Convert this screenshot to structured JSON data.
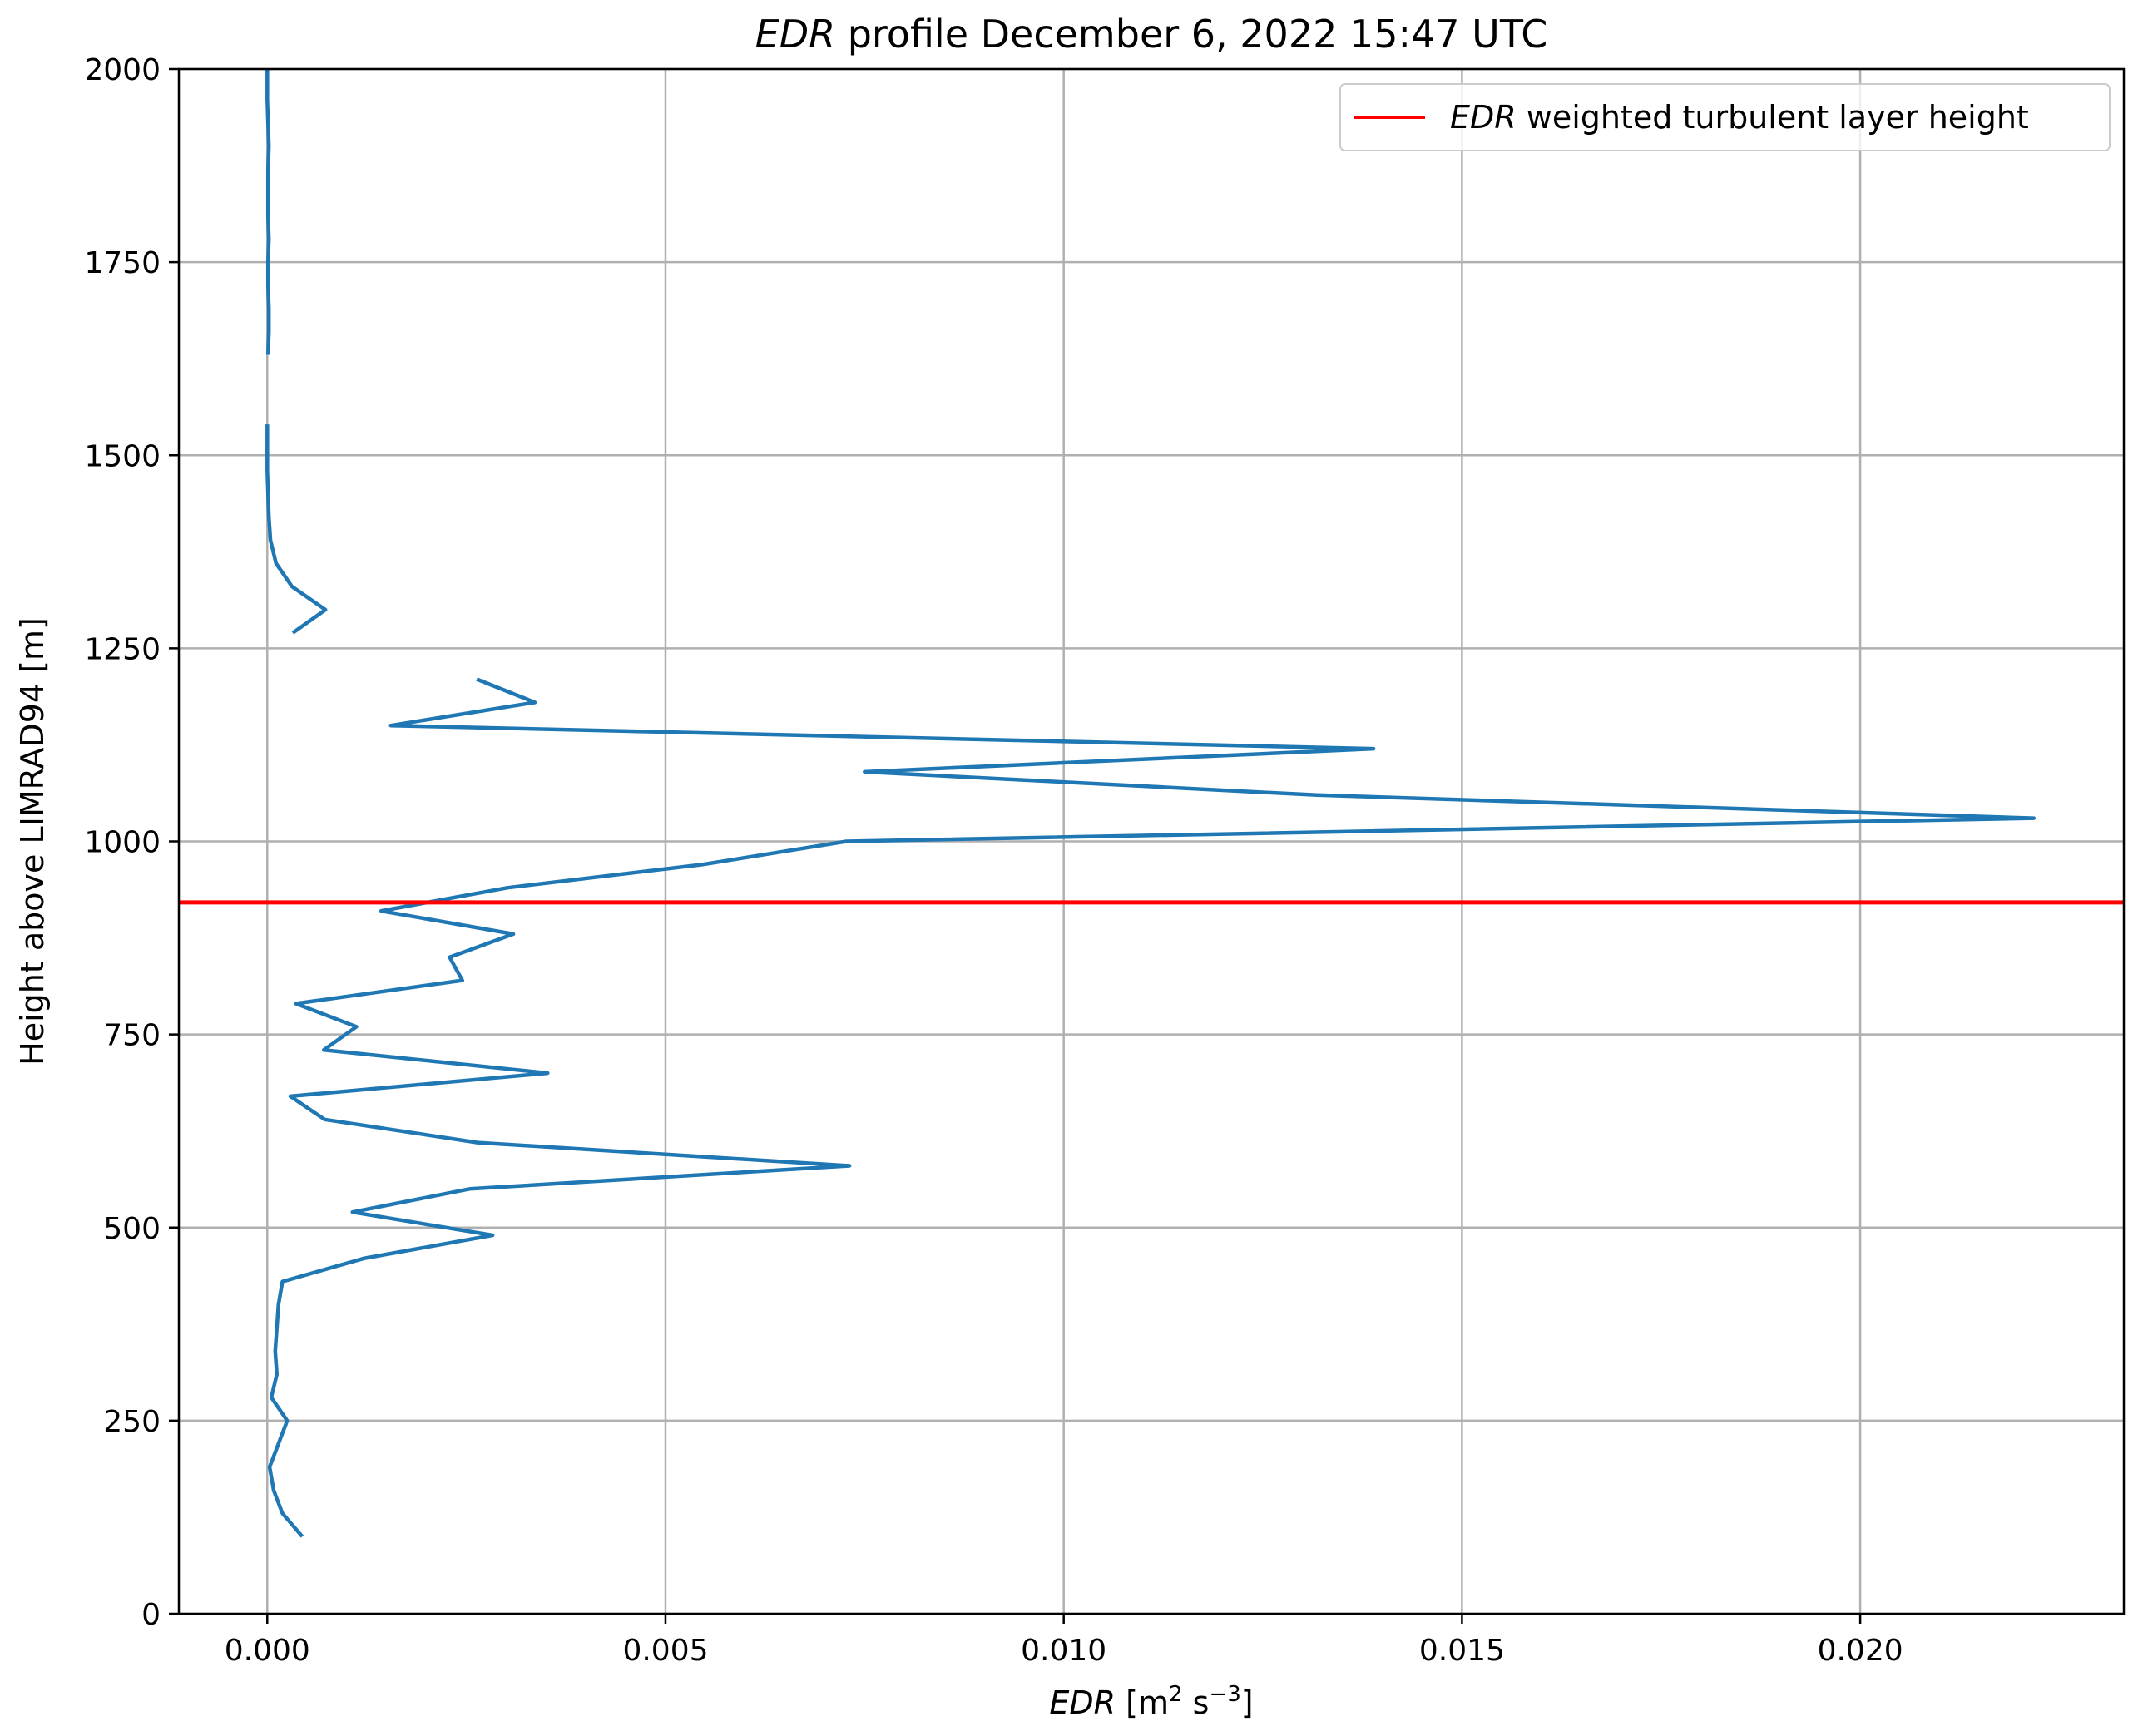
{
  "chart_data": {
    "type": "line",
    "title_italic": "EDR",
    "title_rest": " profile December 6, 2022 15:47 UTC",
    "xlabel_italic": "EDR",
    "xlabel_unit_open": " [m",
    "xlabel_exp1": "2",
    "xlabel_mid": " s",
    "xlabel_exp2": "−3",
    "xlabel_close": "]",
    "ylabel": "Height above LIMRAD94 [m]",
    "xlim": [
      -0.00111,
      0.02331
    ],
    "ylim": [
      0,
      2000
    ],
    "xticks": [
      0.0,
      0.005,
      0.01,
      0.015,
      0.02
    ],
    "xtick_labels": [
      "0.000",
      "0.005",
      "0.010",
      "0.015",
      "0.020"
    ],
    "yticks": [
      0,
      250,
      500,
      750,
      1000,
      1250,
      1500,
      1750,
      2000
    ],
    "ytick_labels": [
      "0",
      "250",
      "500",
      "750",
      "1000",
      "1250",
      "1500",
      "1750",
      "2000"
    ],
    "grid": true,
    "legend_position": "top-right",
    "colors": {
      "series": "#1f77b4",
      "layer_height": "#ff0000",
      "grid": "#b0b0b0"
    },
    "series": [
      {
        "name": "",
        "segments": [
          [
            [
              0.00044,
              100
            ],
            [
              0.00019,
              130
            ],
            [
              8e-05,
              160
            ],
            [
              3e-05,
              190
            ],
            [
              0.00014,
              220
            ],
            [
              0.00025,
              250
            ],
            [
              5e-05,
              280
            ],
            [
              0.00012,
              310
            ],
            [
              0.0001,
              340
            ],
            [
              0.00012,
              370
            ],
            [
              0.00014,
              400
            ],
            [
              0.00019,
              430
            ],
            [
              0.00121,
              460
            ],
            [
              0.00283,
              490
            ],
            [
              0.00107,
              520
            ],
            [
              0.00254,
              550
            ],
            [
              0.00731,
              580
            ],
            [
              0.00264,
              610
            ],
            [
              0.00072,
              640
            ],
            [
              0.00029,
              670
            ],
            [
              0.00352,
              700
            ],
            [
              0.00071,
              730
            ],
            [
              0.00112,
              760
            ],
            [
              0.00036,
              790
            ],
            [
              0.00245,
              820
            ],
            [
              0.00229,
              850
            ],
            [
              0.00309,
              880
            ],
            [
              0.00143,
              910
            ],
            [
              0.00302,
              940
            ],
            [
              0.00546,
              970
            ],
            [
              0.00727,
              1000
            ],
            [
              0.02218,
              1030
            ],
            [
              0.01318,
              1060
            ],
            [
              0.0075,
              1090
            ],
            [
              0.01389,
              1120
            ],
            [
              0.00155,
              1150
            ],
            [
              0.00336,
              1180
            ],
            [
              0.00263,
              1210
            ]
          ],
          [
            [
              0.00032,
              1270
            ],
            [
              0.00073,
              1300
            ],
            [
              0.00031,
              1330
            ],
            [
              0.00011,
              1360
            ],
            [
              4e-05,
              1390
            ],
            [
              2e-05,
              1420
            ],
            [
              1e-05,
              1450
            ],
            [
              0.0,
              1480
            ],
            [
              0.0,
              1510
            ],
            [
              0.0,
              1540
            ]
          ],
          [
            [
              1e-05,
              1630
            ],
            [
              2e-05,
              1660
            ],
            [
              2e-05,
              1690
            ],
            [
              1e-05,
              1720
            ],
            [
              1e-05,
              1750
            ],
            [
              2e-05,
              1780
            ],
            [
              1e-05,
              1810
            ],
            [
              1e-05,
              1840
            ],
            [
              1e-05,
              1870
            ],
            [
              2e-05,
              1900
            ],
            [
              1e-05,
              1930
            ],
            [
              0.0,
              1960
            ],
            [
              0.0,
              1990
            ],
            [
              0.0,
              2000
            ]
          ]
        ]
      }
    ],
    "layer_height": 921,
    "legend": {
      "label_italic": "EDR",
      "label_rest": " weighted turbulent layer height"
    }
  }
}
